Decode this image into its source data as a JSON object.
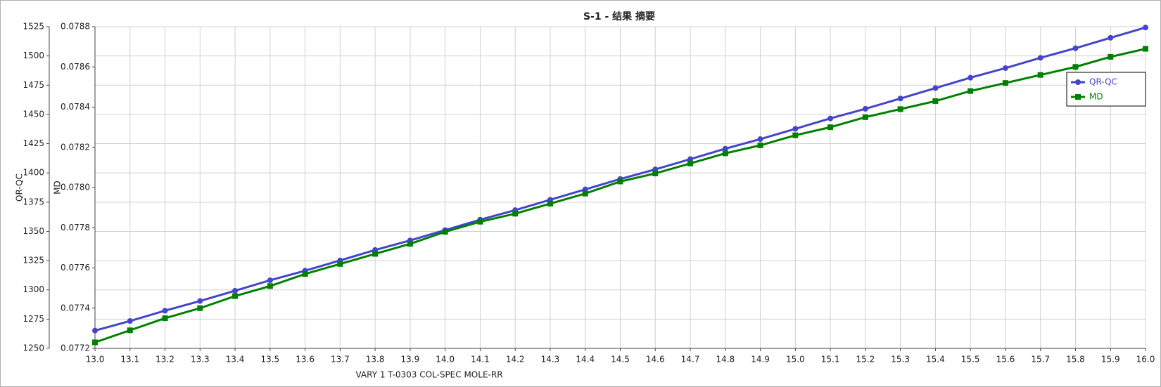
{
  "chart_data": {
    "type": "line",
    "title": "S-1 - 结果 摘要",
    "x_label": "VARY   1 T-0303    COL-SPEC MOLE-RR",
    "y_label": "QR-QC",
    "y2_label": "MD",
    "x": [
      13,
      13.1,
      13.2,
      13.3,
      13.4,
      13.5,
      13.6,
      13.7,
      13.8,
      13.9,
      14,
      14.1,
      14.2,
      14.3,
      14.4,
      14.5,
      14.6,
      14.7,
      14.8,
      14.9,
      15,
      15.1,
      15.2,
      15.3,
      15.4,
      15.5,
      15.6,
      15.7,
      15.8,
      15.9,
      16
    ],
    "xlim": [
      13,
      16
    ],
    "xticks": [
      {
        "value": 13,
        "label": "13.0"
      },
      13.1,
      13.2,
      13.3,
      13.4,
      13.5,
      13.6,
      13.7,
      13.8,
      13.9,
      {
        "value": 14,
        "label": "14.0"
      },
      14.1,
      14.2,
      14.3,
      14.4,
      14.5,
      14.6,
      14.7,
      14.8,
      14.9,
      {
        "value": 15,
        "label": "15.0"
      },
      15.1,
      15.2,
      15.3,
      15.4,
      15.5,
      15.6,
      15.7,
      15.8,
      15.9,
      {
        "value": 16,
        "label": "16.0"
      }
    ],
    "ylim": [
      1250,
      1525
    ],
    "yticks": [
      1250,
      1275,
      1300,
      1325,
      1350,
      1375,
      1400,
      1425,
      1450,
      1475,
      1500,
      1525
    ],
    "y2lim": [
      0.0772,
      0.0788
    ],
    "y2ticks": [
      0.0772,
      0.0774,
      0.0776,
      0.0778,
      {
        "value": 0.078,
        "label": "0.0780"
      },
      0.0782,
      0.0784,
      0.0786,
      0.0788
    ],
    "grid": true,
    "legend": "upper right",
    "series": [
      {
        "name": "QR-QC",
        "color": "#4444cc",
        "marker": "circle",
        "values": [
          1265.2,
          1273.4,
          1282.2,
          1290.5,
          1299.3,
          1308.2,
          1316.4,
          1325.2,
          1334.1,
          1342.3,
          1351.1,
          1360.0,
          1368.2,
          1377.0,
          1385.9,
          1394.8,
          1403.0,
          1411.8,
          1420.7,
          1428.9,
          1437.7,
          1446.6,
          1454.8,
          1463.6,
          1472.5,
          1481.4,
          1489.6,
          1498.4,
          1506.6,
          1515.5,
          1524.3
        ]
      },
      {
        "name": "MD",
        "color": "#008000",
        "marker": "square",
        "axis": "y2",
        "values": [
          0.07723,
          0.07729,
          0.07735,
          0.0774,
          0.07746,
          0.07751,
          0.07757,
          0.07762,
          0.07767,
          0.07772,
          0.07778,
          0.07783,
          0.07787,
          0.07792,
          0.07797,
          0.07803,
          0.07807,
          0.07812,
          0.07817,
          0.07821,
          0.07826,
          0.0783,
          0.07835,
          0.07839,
          0.07843,
          0.07848,
          0.07852,
          0.07856,
          0.0786,
          0.07865,
          0.07869
        ]
      }
    ]
  }
}
